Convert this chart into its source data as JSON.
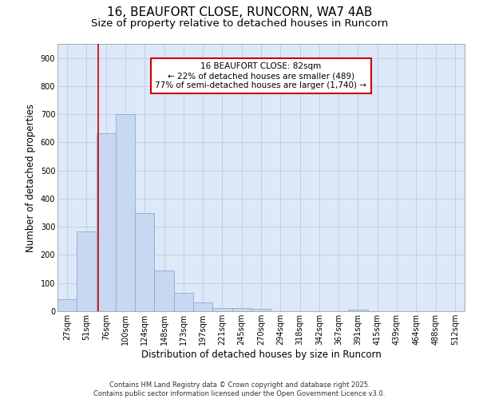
{
  "title_line1": "16, BEAUFORT CLOSE, RUNCORN, WA7 4AB",
  "title_line2": "Size of property relative to detached houses in Runcorn",
  "xlabel": "Distribution of detached houses by size in Runcorn",
  "ylabel": "Number of detached properties",
  "bar_color": "#c8d8f0",
  "bar_edge_color": "#88aad8",
  "background_color": "#ffffff",
  "plot_bg_color": "#dde8f8",
  "grid_color": "#c0cce0",
  "categories": [
    "27sqm",
    "51sqm",
    "76sqm",
    "100sqm",
    "124sqm",
    "148sqm",
    "173sqm",
    "197sqm",
    "221sqm",
    "245sqm",
    "270sqm",
    "294sqm",
    "318sqm",
    "342sqm",
    "367sqm",
    "391sqm",
    "415sqm",
    "439sqm",
    "464sqm",
    "488sqm",
    "512sqm"
  ],
  "values": [
    42,
    285,
    632,
    700,
    350,
    145,
    65,
    30,
    12,
    10,
    8,
    0,
    0,
    0,
    0,
    5,
    0,
    0,
    0,
    0,
    0
  ],
  "ylim": [
    0,
    950
  ],
  "yticks": [
    0,
    100,
    200,
    300,
    400,
    500,
    600,
    700,
    800,
    900
  ],
  "vline_x": 2.0,
  "vline_color": "#cc0000",
  "annotation_text": "16 BEAUFORT CLOSE: 82sqm\n← 22% of detached houses are smaller (489)\n77% of semi-detached houses are larger (1,740) →",
  "annotation_box_facecolor": "#ffffff",
  "annotation_box_edgecolor": "#cc0000",
  "footer_text": "Contains HM Land Registry data © Crown copyright and database right 2025.\nContains public sector information licensed under the Open Government Licence v3.0.",
  "title_fontsize": 11,
  "subtitle_fontsize": 9.5,
  "axis_label_fontsize": 8.5,
  "tick_fontsize": 7,
  "annotation_fontsize": 7.5,
  "footer_fontsize": 6
}
